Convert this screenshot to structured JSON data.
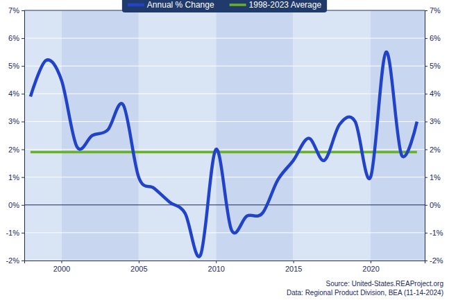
{
  "chart_data": {
    "type": "line",
    "x": [
      1998,
      1999,
      2000,
      2001,
      2002,
      2003,
      2004,
      2005,
      2006,
      2007,
      2008,
      2009,
      2010,
      2011,
      2012,
      2013,
      2014,
      2015,
      2016,
      2017,
      2018,
      2019,
      2020,
      2021,
      2022,
      2023
    ],
    "series": [
      {
        "name": "Annual % Change",
        "color": "#2143c9",
        "values": [
          3.9,
          5.2,
          4.5,
          2.1,
          2.5,
          2.7,
          3.6,
          1.0,
          0.6,
          0.1,
          -0.3,
          -1.8,
          2.0,
          -0.9,
          -0.4,
          -0.3,
          0.9,
          1.6,
          2.4,
          1.6,
          2.9,
          3.0,
          1.0,
          5.5,
          1.8,
          3.0
        ]
      },
      {
        "name": "1998-2023 Average",
        "color": "#6ab023",
        "values": [
          1.9,
          1.9,
          1.9,
          1.9,
          1.9,
          1.9,
          1.9,
          1.9,
          1.9,
          1.9,
          1.9,
          1.9,
          1.9,
          1.9,
          1.9,
          1.9,
          1.9,
          1.9,
          1.9,
          1.9,
          1.9,
          1.9,
          1.9,
          1.9,
          1.9,
          1.9
        ]
      }
    ],
    "xlim": [
      1997.6,
      2023.5
    ],
    "xticks": [
      2000,
      2005,
      2010,
      2015,
      2020
    ],
    "ylim": [
      -2,
      7
    ],
    "yticks": [
      {
        "value": -2,
        "label": "-2%"
      },
      {
        "value": -1,
        "label": "-1%"
      },
      {
        "value": 0,
        "label": "0%"
      },
      {
        "value": 1,
        "label": "1%"
      },
      {
        "value": 2,
        "label": "2%"
      },
      {
        "value": 3,
        "label": "3%"
      },
      {
        "value": 4,
        "label": "4%"
      },
      {
        "value": 5,
        "label": "5%"
      },
      {
        "value": 6,
        "label": "6%"
      },
      {
        "value": 7,
        "label": "7%"
      }
    ],
    "grid": true,
    "legend": "top",
    "annotations": [
      "Source: United-States.REAProject.org",
      "Data: Regional Product Division, BEA (11-14-2024)"
    ]
  }
}
